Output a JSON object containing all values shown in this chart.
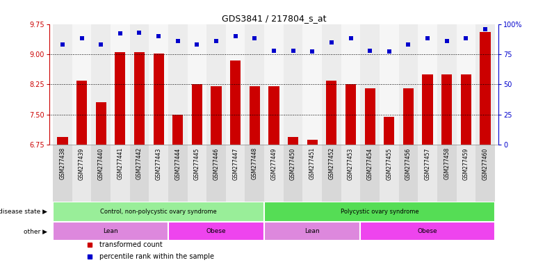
{
  "title": "GDS3841 / 217804_s_at",
  "samples": [
    "GSM277438",
    "GSM277439",
    "GSM277440",
    "GSM277441",
    "GSM277442",
    "GSM277443",
    "GSM277444",
    "GSM277445",
    "GSM277446",
    "GSM277447",
    "GSM277448",
    "GSM277449",
    "GSM277450",
    "GSM277451",
    "GSM277452",
    "GSM277453",
    "GSM277454",
    "GSM277455",
    "GSM277456",
    "GSM277457",
    "GSM277458",
    "GSM277459",
    "GSM277460"
  ],
  "bar_values": [
    6.95,
    8.35,
    7.8,
    9.05,
    9.05,
    9.02,
    7.5,
    8.25,
    8.2,
    8.85,
    8.2,
    8.2,
    6.95,
    6.88,
    8.35,
    8.25,
    8.15,
    7.45,
    8.15,
    8.5,
    8.5,
    8.5,
    9.55
  ],
  "percentile_values": [
    83,
    88,
    83,
    92,
    93,
    90,
    86,
    83,
    86,
    90,
    88,
    78,
    78,
    77,
    85,
    88,
    78,
    77,
    83,
    88,
    86,
    88,
    96
  ],
  "ylim_left": [
    6.75,
    9.75
  ],
  "ylim_right": [
    0,
    100
  ],
  "yticks_left": [
    6.75,
    7.5,
    8.25,
    9.0,
    9.75
  ],
  "yticks_right": [
    0,
    25,
    50,
    75,
    100
  ],
  "bar_color": "#cc0000",
  "dot_color": "#0000cc",
  "disease_state_groups": [
    {
      "label": "Control, non-polycystic ovary syndrome",
      "start": 0,
      "end": 11,
      "color": "#99ee99"
    },
    {
      "label": "Polycystic ovary syndrome",
      "start": 11,
      "end": 23,
      "color": "#55dd55"
    }
  ],
  "other_groups": [
    {
      "label": "Lean",
      "start": 0,
      "end": 6,
      "color": "#dd88dd"
    },
    {
      "label": "Obese",
      "start": 6,
      "end": 11,
      "color": "#ee44ee"
    },
    {
      "label": "Lean",
      "start": 11,
      "end": 16,
      "color": "#dd88dd"
    },
    {
      "label": "Obese",
      "start": 16,
      "end": 23,
      "color": "#ee44ee"
    }
  ],
  "legend_items": [
    {
      "label": "transformed count",
      "color": "#cc0000"
    },
    {
      "label": "percentile rank within the sample",
      "color": "#0000cc"
    }
  ],
  "bg_color": "#ffffff",
  "xticklabel_bg": "#d8d8d8",
  "label_fontsize": 6.5,
  "tick_fontsize": 5.5,
  "title_fontsize": 9
}
